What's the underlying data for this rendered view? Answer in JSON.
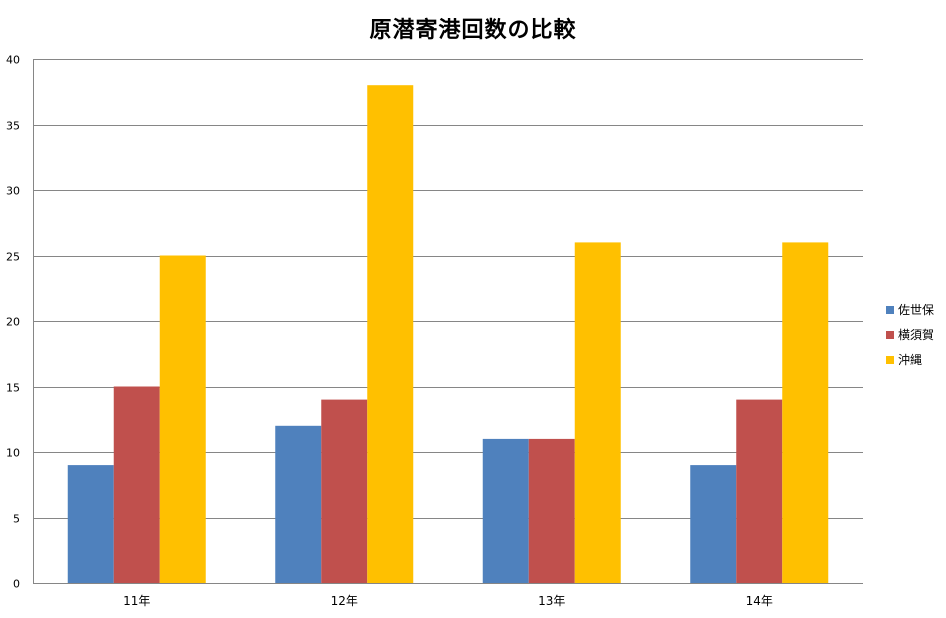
{
  "chart_data": {
    "type": "bar",
    "title": "原潜寄港回数の比較",
    "xlabel": "",
    "ylabel": "",
    "categories": [
      "11年",
      "12年",
      "13年",
      "14年"
    ],
    "series": [
      {
        "name": "佐世保",
        "values": [
          9,
          12,
          11,
          9
        ],
        "color": "#4F81BD"
      },
      {
        "name": "横須賀",
        "values": [
          15,
          14,
          11,
          14
        ],
        "color": "#C0504D"
      },
      {
        "name": "沖縄",
        "values": [
          25,
          38,
          26,
          26
        ],
        "color": "#FFC000"
      }
    ],
    "ylim": [
      0,
      40
    ],
    "yticks": [
      0,
      5,
      10,
      15,
      20,
      25,
      30,
      35,
      40
    ],
    "grid": true,
    "legend_position": "right"
  }
}
